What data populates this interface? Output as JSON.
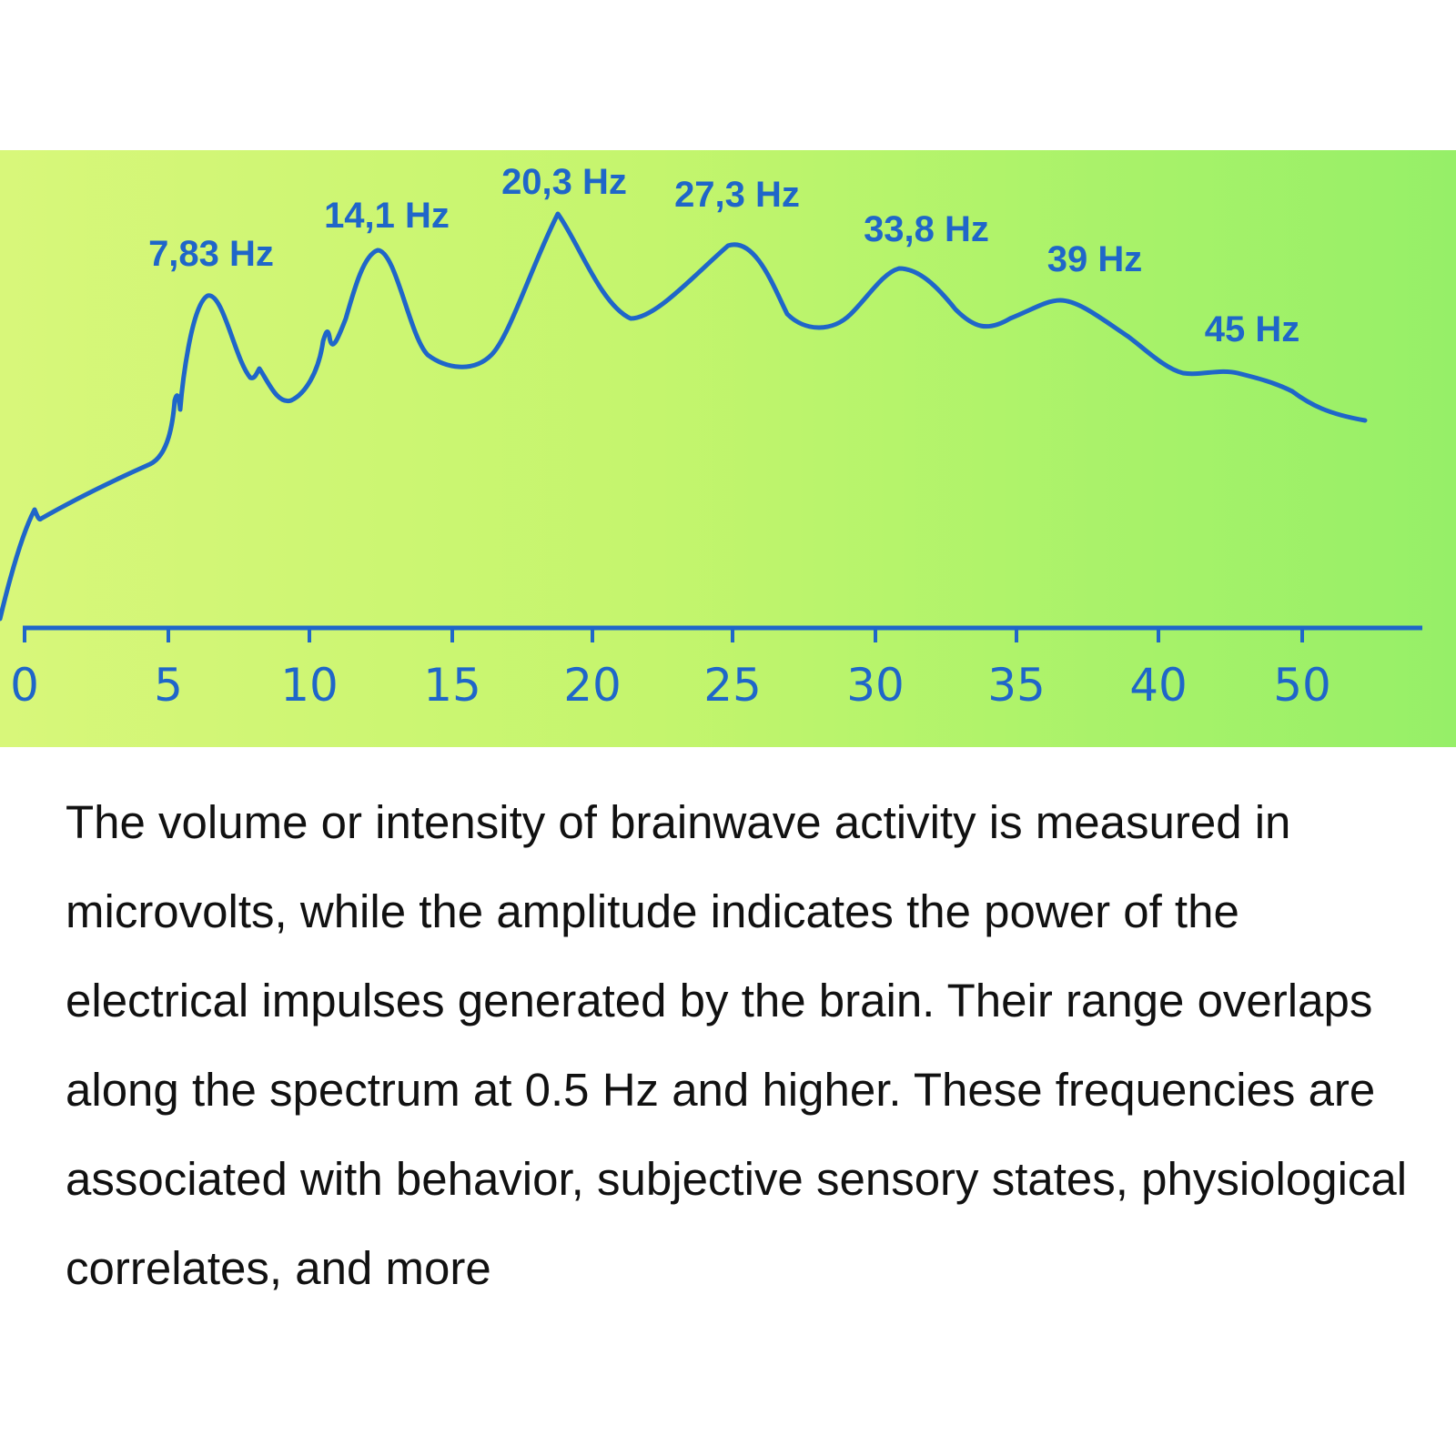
{
  "chart_data": {
    "type": "line",
    "title": "",
    "xlabel": "",
    "ylabel": "",
    "x_ticks": [
      "0",
      "5",
      "10",
      "15",
      "20",
      "25",
      "30",
      "35",
      "40",
      "50"
    ],
    "peaks": [
      {
        "label": "7,83 Hz",
        "x": 7.83
      },
      {
        "label": "14,1 Hz",
        "x": 14.1
      },
      {
        "label": "20,3 Hz",
        "x": 20.3
      },
      {
        "label": "27,3 Hz",
        "x": 27.3
      },
      {
        "label": "33,8 Hz",
        "x": 33.8
      },
      {
        "label": "39 Hz",
        "x": 39
      },
      {
        "label": "45 Hz",
        "x": 45
      }
    ],
    "line_color": "#1f66c9",
    "background_gradient": [
      "#d8f77a",
      "#96ef68"
    ],
    "grid": false,
    "legend": "none"
  },
  "caption": "The volume or intensity of brainwave activity is measured in microvolts, while the amplitude indicates the power of the electrical impulses generated by the brain. Their range overlaps along the spectrum at 0.5 Hz and higher. These frequencies are associated with behavior, subjective sensory states, physiological correlates, and more"
}
